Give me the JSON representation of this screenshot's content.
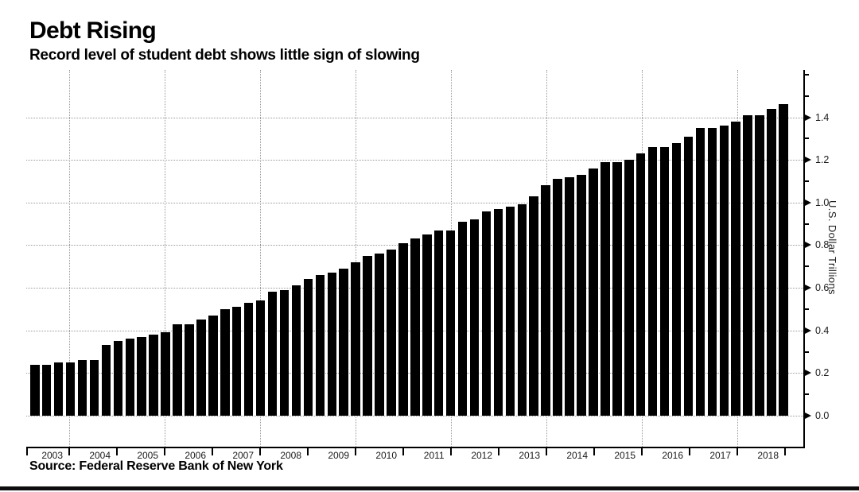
{
  "header": {
    "title": "Debt Rising",
    "subtitle": "Record level of student debt shows little sign of slowing"
  },
  "footer": {
    "source": "Source: Federal Reserve Bank of New York"
  },
  "axes": {
    "y_title": "U.S. Dollar Trillions",
    "y_tick_labels": [
      "0.0",
      "0.2",
      "0.4",
      "0.6",
      "0.8",
      "1.0",
      "1.2",
      "1.4"
    ],
    "x_tick_labels": [
      "2003",
      "2004",
      "2005",
      "2006",
      "2007",
      "2008",
      "2009",
      "2010",
      "2011",
      "2012",
      "2013",
      "2014",
      "2015",
      "2016",
      "2017",
      "2018"
    ]
  },
  "colors": {
    "bar": "#000000",
    "grid": "#9a9a9a",
    "axis": "#000000",
    "text": "#000000"
  },
  "chart_data": {
    "type": "bar",
    "title": "Debt Rising",
    "subtitle": "Record level of student debt shows little sign of slowing",
    "source": "Source: Federal Reserve Bank of New York",
    "xlabel": "",
    "ylabel": "U.S. Dollar Trillions",
    "frequency": "quarterly",
    "grid": "dotted",
    "legend_position": "none",
    "bar_color": "#000000",
    "ylim": [
      -0.15,
      1.62
    ],
    "y_major_ticks": [
      0.0,
      0.2,
      0.4,
      0.6,
      0.8,
      1.0,
      1.2,
      1.4
    ],
    "y_minor_ticks": [
      0.1,
      0.3,
      0.5,
      0.7,
      0.9,
      1.1,
      1.3,
      1.5,
      1.6
    ],
    "x_year_labels": [
      "2003",
      "2004",
      "2005",
      "2006",
      "2007",
      "2008",
      "2009",
      "2010",
      "2011",
      "2012",
      "2013",
      "2014",
      "2015",
      "2016",
      "2017",
      "2018"
    ],
    "categories": [
      "2003 Q1",
      "2003 Q2",
      "2003 Q3",
      "2003 Q4",
      "2004 Q1",
      "2004 Q2",
      "2004 Q3",
      "2004 Q4",
      "2005 Q1",
      "2005 Q2",
      "2005 Q3",
      "2005 Q4",
      "2006 Q1",
      "2006 Q2",
      "2006 Q3",
      "2006 Q4",
      "2007 Q1",
      "2007 Q2",
      "2007 Q3",
      "2007 Q4",
      "2008 Q1",
      "2008 Q2",
      "2008 Q3",
      "2008 Q4",
      "2009 Q1",
      "2009 Q2",
      "2009 Q3",
      "2009 Q4",
      "2010 Q1",
      "2010 Q2",
      "2010 Q3",
      "2010 Q4",
      "2011 Q1",
      "2011 Q2",
      "2011 Q3",
      "2011 Q4",
      "2012 Q1",
      "2012 Q2",
      "2012 Q3",
      "2012 Q4",
      "2013 Q1",
      "2013 Q2",
      "2013 Q3",
      "2013 Q4",
      "2014 Q1",
      "2014 Q2",
      "2014 Q3",
      "2014 Q4",
      "2015 Q1",
      "2015 Q2",
      "2015 Q3",
      "2015 Q4",
      "2016 Q1",
      "2016 Q2",
      "2016 Q3",
      "2016 Q4",
      "2017 Q1",
      "2017 Q2",
      "2017 Q3",
      "2017 Q4",
      "2018 Q1",
      "2018 Q2",
      "2018 Q3",
      "2018 Q4"
    ],
    "values": [
      0.24,
      0.24,
      0.25,
      0.25,
      0.26,
      0.26,
      0.33,
      0.35,
      0.36,
      0.37,
      0.38,
      0.39,
      0.43,
      0.43,
      0.45,
      0.47,
      0.5,
      0.51,
      0.53,
      0.54,
      0.58,
      0.59,
      0.61,
      0.64,
      0.66,
      0.67,
      0.69,
      0.72,
      0.75,
      0.76,
      0.78,
      0.81,
      0.83,
      0.85,
      0.87,
      0.87,
      0.91,
      0.92,
      0.96,
      0.97,
      0.98,
      0.99,
      1.03,
      1.08,
      1.11,
      1.12,
      1.13,
      1.16,
      1.19,
      1.19,
      1.2,
      1.23,
      1.26,
      1.26,
      1.28,
      1.31,
      1.35,
      1.35,
      1.36,
      1.38,
      1.41,
      1.41,
      1.44,
      1.46
    ]
  }
}
